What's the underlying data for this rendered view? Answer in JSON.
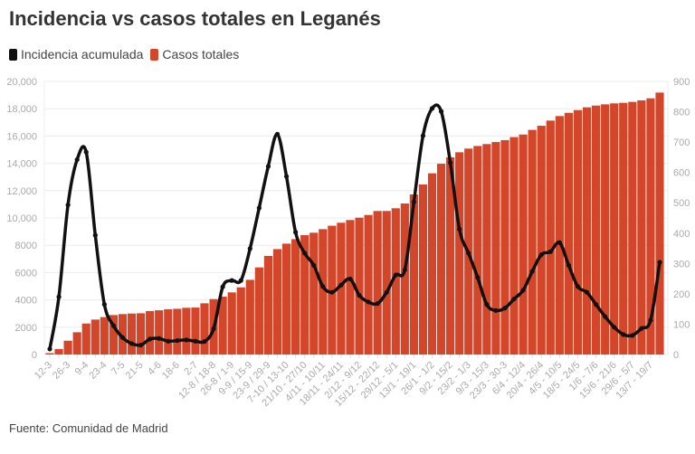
{
  "title": "Incidencia vs casos totales en Leganés",
  "source": "Fuente: Comunidad de Madrid",
  "colors": {
    "incidencia": "#111111",
    "casos": "#d4462a",
    "grid": "#ececec",
    "tick": "#aaaaaa"
  },
  "legend": [
    {
      "label": "Incidencia acumulada",
      "color": "#111111"
    },
    {
      "label": "Casos totales",
      "color": "#d4462a"
    }
  ],
  "chart_data": {
    "type": "bar+line",
    "title": "Incidencia vs casos totales en Leganés",
    "legend_position": "top-left",
    "grid": true,
    "left_axis": {
      "series": "Casos totales",
      "ylim": [
        0,
        20000
      ],
      "ticks": [
        "0",
        "2000",
        "4000",
        "6000",
        "8000",
        "10,000",
        "12,000",
        "14,000",
        "16,000",
        "18,000",
        "20,000"
      ]
    },
    "right_axis": {
      "series": "Incidencia acumulada",
      "ylim": [
        0,
        900
      ],
      "ticks": [
        "0",
        "100",
        "200",
        "300",
        "400",
        "500",
        "600",
        "700",
        "800",
        "900"
      ]
    },
    "x_tick_labels": [
      "12-3",
      "26-3",
      "9-4",
      "23-4",
      "7-5",
      "21-5",
      "4-6",
      "18-6",
      "2-7",
      "12-8 / 18-8",
      "26-8 / 1-9",
      "9-9 / 15-9",
      "23-9 / 29-9",
      "7-10 / 13-10",
      "21/10 - 27/10",
      "4/11 - 10/11",
      "18/11 - 24/11",
      "2/12 - 9/12",
      "15/12 - 22/12",
      "29/12 - 5/1",
      "13/1 - 19/1",
      "26/1 - 1/2",
      "9/2 - 15/2",
      "23/2 - 1/3",
      "9/3 - 15/3",
      "23/3 - 30-3",
      "6/4 - 12/4",
      "20/4 - 26/4",
      "4/5 - 10/5",
      "18/5 - 24/5",
      "1/6 - 7/6",
      "15/6 - 21/6",
      "29/6 - 5/7",
      "13/7 - 19/7"
    ],
    "series": [
      {
        "name": "Casos totales",
        "type": "bar",
        "axis": "left",
        "values": [
          100,
          400,
          1010,
          1630,
          2270,
          2560,
          2740,
          2890,
          2960,
          3000,
          3020,
          3180,
          3240,
          3310,
          3350,
          3420,
          3440,
          3750,
          4060,
          4240,
          4550,
          4920,
          5470,
          6380,
          7220,
          7720,
          8120,
          8450,
          8740,
          8920,
          9180,
          9430,
          9650,
          9850,
          10020,
          10220,
          10510,
          10510,
          10710,
          11060,
          11720,
          12450,
          13270,
          13970,
          14440,
          14810,
          15080,
          15270,
          15410,
          15560,
          15700,
          15920,
          16110,
          16450,
          16750,
          17130,
          17460,
          17700,
          17900,
          18100,
          18230,
          18320,
          18390,
          18430,
          18500,
          18610,
          18760,
          19180
        ]
      },
      {
        "name": "Incidencia acumulada",
        "type": "line",
        "axis": "right",
        "values": [
          18,
          190,
          493,
          642,
          667,
          393,
          165,
          95,
          56,
          36,
          31,
          51,
          53,
          44,
          46,
          48,
          44,
          43,
          85,
          223,
          244,
          244,
          349,
          483,
          620,
          726,
          587,
          403,
          334,
          294,
          224,
          205,
          229,
          249,
          195,
          173,
          168,
          205,
          262,
          279,
          503,
          721,
          811,
          801,
          632,
          413,
          334,
          254,
          165,
          145,
          153,
          183,
          212,
          274,
          329,
          339,
          369,
          294,
          224,
          205,
          165,
          125,
          90,
          66,
          63,
          86,
          113,
          304
        ]
      }
    ]
  }
}
